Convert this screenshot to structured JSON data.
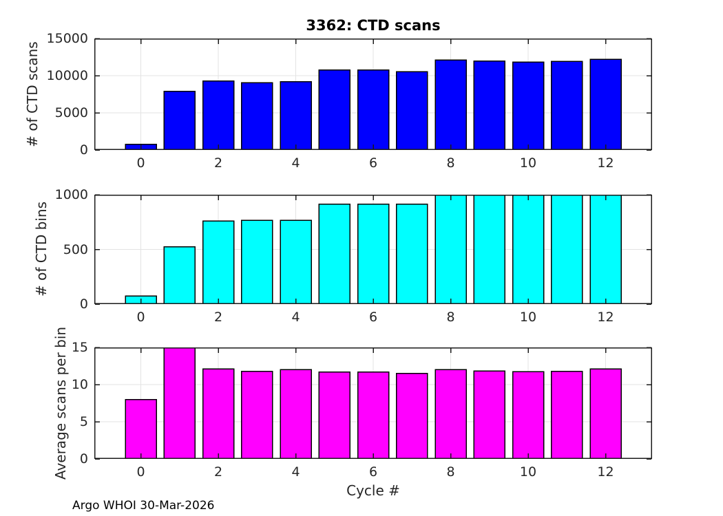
{
  "figure": {
    "footer": "Argo WHOI 30-Mar-2026",
    "background_color": "#ffffff",
    "axis_color": "#1a1a1a",
    "grid_color": "#e3e3e3",
    "text_color": "#262626"
  },
  "chart_data": [
    {
      "type": "bar",
      "title": "3362: CTD scans",
      "ylabel": "# of CTD scans",
      "x": [
        0,
        1,
        2,
        3,
        4,
        5,
        6,
        7,
        8,
        9,
        10,
        11,
        12
      ],
      "values": [
        750,
        7900,
        9300,
        9050,
        9200,
        10750,
        10750,
        10550,
        12100,
        11950,
        11850,
        11900,
        12200
      ],
      "ylim": [
        0,
        15000
      ],
      "yticks": [
        0,
        5000,
        10000,
        15000
      ],
      "ytick_labels": [
        "0",
        "5000",
        "10000",
        "15000"
      ],
      "xlim": [
        -1.2,
        13.2
      ],
      "xticks": [
        0,
        2,
        4,
        6,
        8,
        10,
        12
      ],
      "xtick_labels": [
        "0",
        "2",
        "4",
        "6",
        "8",
        "10",
        "12"
      ],
      "bar_color": "#0000ff",
      "bar_edge_color": "#000000",
      "bar_width": 0.8,
      "grid": true,
      "legend": null
    },
    {
      "type": "bar",
      "title": "",
      "ylabel": "# of CTD bins",
      "x": [
        0,
        1,
        2,
        3,
        4,
        5,
        6,
        7,
        8,
        9,
        10,
        11,
        12
      ],
      "values": [
        75,
        525,
        760,
        765,
        765,
        915,
        915,
        915,
        1000,
        1000,
        1000,
        1000,
        1000
      ],
      "ylim": [
        0,
        1000
      ],
      "yticks": [
        0,
        500,
        1000
      ],
      "ytick_labels": [
        "0",
        "500",
        "1000"
      ],
      "xlim": [
        -1.2,
        13.2
      ],
      "xticks": [
        0,
        2,
        4,
        6,
        8,
        10,
        12
      ],
      "xtick_labels": [
        "0",
        "2",
        "4",
        "6",
        "8",
        "10",
        "12"
      ],
      "bar_color": "#00ffff",
      "bar_edge_color": "#000000",
      "bar_width": 0.8,
      "grid": true,
      "legend": null
    },
    {
      "type": "bar",
      "title": "",
      "ylabel": "Average scans per bin",
      "xlabel": "Cycle #",
      "x": [
        0,
        1,
        2,
        3,
        4,
        5,
        6,
        7,
        8,
        9,
        10,
        11,
        12
      ],
      "values": [
        8.0,
        15.0,
        12.1,
        11.8,
        12.0,
        11.7,
        11.7,
        11.5,
        12.0,
        11.85,
        11.75,
        11.8,
        12.1
      ],
      "ylim": [
        0,
        15
      ],
      "yticks": [
        0,
        5,
        10,
        15
      ],
      "ytick_labels": [
        "0",
        "5",
        "10",
        "15"
      ],
      "xlim": [
        -1.2,
        13.2
      ],
      "xticks": [
        0,
        2,
        4,
        6,
        8,
        10,
        12
      ],
      "xtick_labels": [
        "0",
        "2",
        "4",
        "6",
        "8",
        "10",
        "12"
      ],
      "bar_color": "#ff00ff",
      "bar_edge_color": "#000000",
      "bar_width": 0.8,
      "grid": true,
      "legend": null
    }
  ]
}
